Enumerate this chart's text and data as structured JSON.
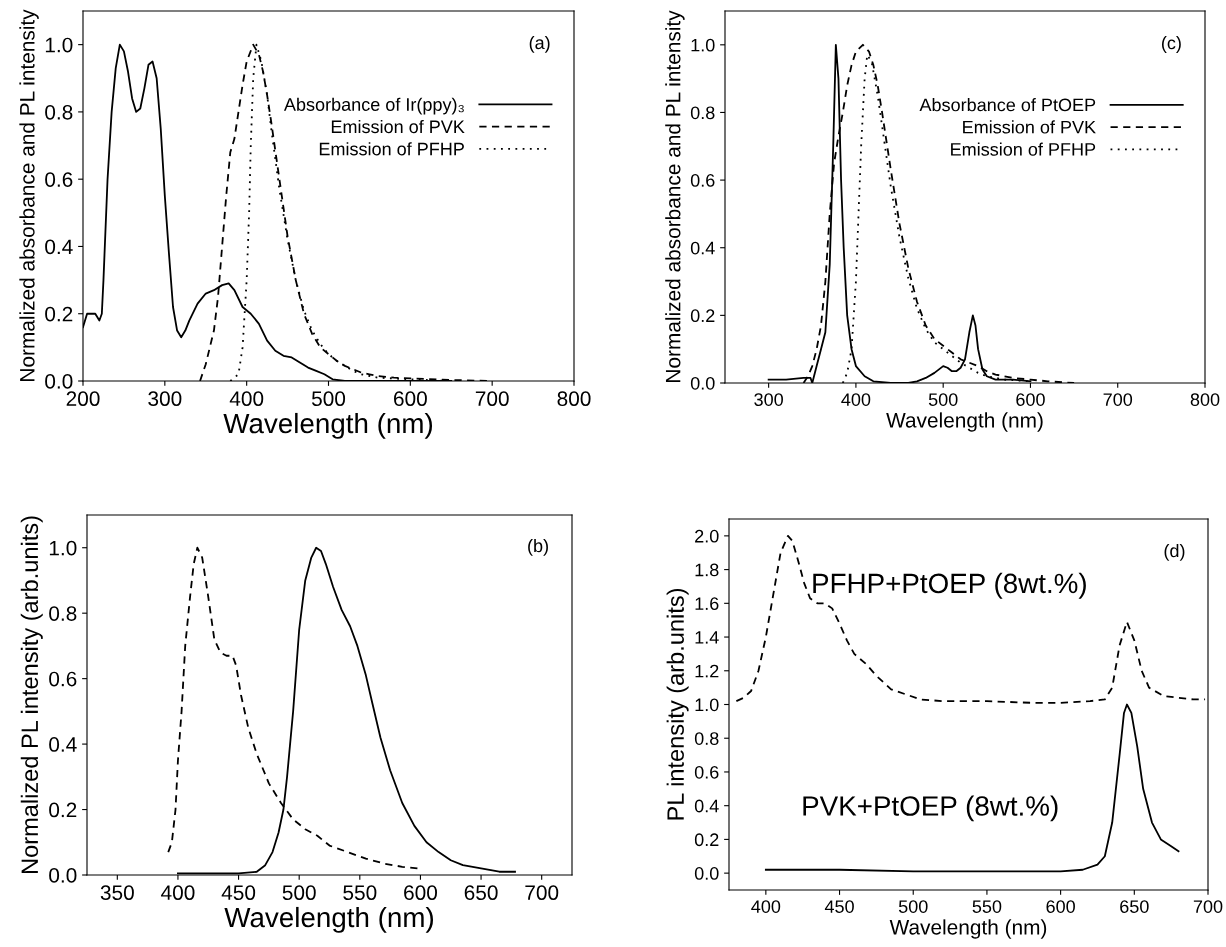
{
  "chart_data": [
    {
      "type": "line",
      "xlabel": "Wavelength (nm)",
      "ylabel": "Normalized absorbance and PL intensity",
      "annotations": [
        "(a)"
      ],
      "xlim": [
        200,
        800
      ],
      "ylim": [
        0,
        1.1
      ],
      "xticks": [
        200,
        300,
        400,
        500,
        600,
        700,
        800
      ],
      "yticks": [
        {
          "value": 0,
          "label": "0.0"
        },
        0.2,
        0.4,
        0.6,
        0.8,
        {
          "value": 1,
          "label": "1.0"
        }
      ],
      "legend": "right",
      "grid": false,
      "series": [
        {
          "name": "Absorbance of Ir(ppy)₃",
          "color": "#000000",
          "line_style": "solid",
          "x": [
            200,
            205,
            215,
            220,
            223,
            225,
            230,
            235,
            240,
            245,
            250,
            255,
            260,
            265,
            270,
            275,
            280,
            285,
            290,
            295,
            300,
            305,
            310,
            315,
            320,
            325,
            330,
            340,
            350,
            360,
            370,
            378,
            385,
            395,
            405,
            415,
            425,
            435,
            445,
            455,
            465,
            475,
            485,
            495,
            505,
            520,
            600,
            650
          ],
          "values": [
            0.16,
            0.2,
            0.2,
            0.18,
            0.2,
            0.3,
            0.6,
            0.8,
            0.93,
            1.0,
            0.98,
            0.92,
            0.84,
            0.8,
            0.81,
            0.87,
            0.94,
            0.95,
            0.9,
            0.75,
            0.55,
            0.38,
            0.22,
            0.15,
            0.13,
            0.15,
            0.18,
            0.23,
            0.26,
            0.27,
            0.285,
            0.29,
            0.27,
            0.22,
            0.2,
            0.17,
            0.12,
            0.09,
            0.075,
            0.07,
            0.055,
            0.04,
            0.03,
            0.02,
            0.005,
            0,
            0,
            0
          ]
        },
        {
          "name": "Emission of PVK",
          "color": "#000000",
          "line_style": "dashed",
          "x": [
            343,
            350,
            360,
            365,
            370,
            375,
            380,
            385,
            390,
            395,
            400,
            408,
            415,
            420,
            425,
            430,
            440,
            450,
            460,
            470,
            480,
            490,
            500,
            510,
            520,
            530,
            540,
            550,
            560,
            580,
            600,
            650,
            700
          ],
          "values": [
            0,
            0.05,
            0.15,
            0.25,
            0.4,
            0.55,
            0.68,
            0.72,
            0.8,
            0.88,
            0.95,
            1.0,
            0.97,
            0.92,
            0.85,
            0.77,
            0.6,
            0.43,
            0.3,
            0.2,
            0.14,
            0.1,
            0.08,
            0.06,
            0.045,
            0.035,
            0.025,
            0.02,
            0.015,
            0.01,
            0.008,
            0.003,
            0
          ]
        },
        {
          "name": "Emission of PFHP",
          "color": "#000000",
          "line_style": "dotted",
          "x": [
            380,
            390,
            395,
            400,
            403,
            405,
            408,
            412,
            418,
            425,
            430,
            440,
            450,
            460,
            470,
            480,
            490,
            500,
            510,
            520,
            530,
            540,
            560,
            600,
            650
          ],
          "values": [
            0,
            0.02,
            0.1,
            0.3,
            0.5,
            0.7,
            0.9,
            1.0,
            0.95,
            0.85,
            0.75,
            0.57,
            0.42,
            0.3,
            0.21,
            0.15,
            0.11,
            0.08,
            0.06,
            0.045,
            0.03,
            0.02,
            0.01,
            0.005,
            0
          ]
        }
      ]
    },
    {
      "type": "line",
      "xlabel": "Wavelength (nm)",
      "ylabel": "Normalized absorbance and PL intensity",
      "annotations": [
        "(c)"
      ],
      "xlim": [
        250,
        800
      ],
      "ylim": [
        0,
        1.1
      ],
      "xticks": [
        300,
        400,
        500,
        600,
        700,
        800
      ],
      "yticks": [
        {
          "value": 0,
          "label": "0.0"
        },
        0.2,
        0.4,
        0.6,
        0.8,
        {
          "value": 1,
          "label": "1.0"
        }
      ],
      "legend": "right",
      "grid": false,
      "series": [
        {
          "name": "Absorbance of PtOEP",
          "color": "#000000",
          "line_style": "solid",
          "x": [
            300,
            320,
            340,
            348,
            350,
            355,
            360,
            365,
            370,
            374,
            377,
            380,
            383,
            386,
            390,
            395,
            400,
            410,
            420,
            440,
            460,
            470,
            480,
            490,
            500,
            505,
            510,
            515,
            520,
            525,
            530,
            534,
            537,
            540,
            545,
            550,
            560,
            580,
            600
          ],
          "values": [
            0.01,
            0.01,
            0.015,
            0.015,
            0,
            0.05,
            0.1,
            0.15,
            0.35,
            0.7,
            1.0,
            0.9,
            0.6,
            0.4,
            0.2,
            0.1,
            0.05,
            0.02,
            0.005,
            0,
            0,
            0.005,
            0.015,
            0.03,
            0.05,
            0.045,
            0.035,
            0.035,
            0.045,
            0.07,
            0.15,
            0.2,
            0.17,
            0.1,
            0.04,
            0.02,
            0.01,
            0.01,
            0.005
          ]
        },
        {
          "name": "Emission of PVK",
          "color": "#000000",
          "line_style": "dashed",
          "x": [
            340,
            345,
            350,
            355,
            360,
            365,
            370,
            375,
            380,
            385,
            390,
            395,
            400,
            408,
            415,
            420,
            425,
            430,
            440,
            450,
            460,
            470,
            480,
            490,
            500,
            510,
            520,
            530,
            540,
            550,
            560,
            570,
            580,
            600,
            620,
            650
          ],
          "values": [
            0,
            0.02,
            0.05,
            0.1,
            0.17,
            0.3,
            0.5,
            0.65,
            0.73,
            0.8,
            0.88,
            0.94,
            0.98,
            1.0,
            0.98,
            0.94,
            0.88,
            0.8,
            0.63,
            0.47,
            0.34,
            0.24,
            0.17,
            0.13,
            0.11,
            0.09,
            0.07,
            0.06,
            0.05,
            0.035,
            0.025,
            0.02,
            0.015,
            0.01,
            0.005,
            0
          ]
        },
        {
          "name": "Emission of PFHP",
          "color": "#000000",
          "line_style": "dotted",
          "x": [
            385,
            390,
            395,
            400,
            403,
            406,
            410,
            413,
            418,
            425,
            430,
            440,
            450,
            460,
            470,
            480,
            490,
            500,
            510,
            520,
            530,
            540,
            550,
            570,
            600
          ],
          "values": [
            0,
            0.03,
            0.1,
            0.3,
            0.5,
            0.7,
            0.9,
            0.97,
            0.95,
            0.85,
            0.76,
            0.58,
            0.43,
            0.31,
            0.22,
            0.16,
            0.12,
            0.1,
            0.08,
            0.06,
            0.045,
            0.03,
            0.02,
            0.01,
            0.005
          ]
        }
      ]
    },
    {
      "type": "line",
      "xlabel": "Wavelength (nm)",
      "ylabel": "Normalized PL intensity (arb.units)",
      "annotations": [
        "(b)"
      ],
      "xlim": [
        325,
        725
      ],
      "ylim": [
        0,
        1.1
      ],
      "xticks": [
        350,
        400,
        450,
        500,
        550,
        600,
        650,
        700
      ],
      "yticks": [
        {
          "value": 0,
          "label": "0.0"
        },
        0.2,
        0.4,
        0.6,
        0.8,
        {
          "value": 1,
          "label": "1.0"
        }
      ],
      "legend": false,
      "grid": false,
      "series": [
        {
          "color": "#000000",
          "line_style": "dashed",
          "x": [
            392,
            395,
            398,
            400,
            403,
            406,
            410,
            413,
            416,
            420,
            425,
            430,
            435,
            440,
            445,
            448,
            452,
            458,
            465,
            475,
            485,
            495,
            505,
            515,
            525,
            540,
            555,
            570,
            585,
            598
          ],
          "values": [
            0.07,
            0.1,
            0.2,
            0.35,
            0.5,
            0.7,
            0.85,
            0.95,
            1.0,
            0.97,
            0.85,
            0.72,
            0.68,
            0.67,
            0.67,
            0.64,
            0.55,
            0.45,
            0.37,
            0.28,
            0.22,
            0.17,
            0.14,
            0.12,
            0.09,
            0.07,
            0.05,
            0.035,
            0.025,
            0.02
          ]
        },
        {
          "color": "#000000",
          "line_style": "solid",
          "x": [
            400,
            450,
            465,
            472,
            478,
            483,
            487,
            490,
            495,
            500,
            505,
            510,
            514,
            518,
            522,
            528,
            535,
            542,
            548,
            555,
            560,
            567,
            575,
            585,
            595,
            605,
            615,
            625,
            635,
            650,
            665,
            678
          ],
          "values": [
            0.005,
            0.005,
            0.01,
            0.03,
            0.07,
            0.13,
            0.2,
            0.3,
            0.5,
            0.75,
            0.9,
            0.97,
            1.0,
            0.99,
            0.95,
            0.88,
            0.81,
            0.76,
            0.7,
            0.61,
            0.53,
            0.42,
            0.32,
            0.22,
            0.15,
            0.1,
            0.07,
            0.045,
            0.03,
            0.02,
            0.01,
            0.01
          ]
        }
      ]
    },
    {
      "type": "line",
      "xlabel": "Wavelength (nm)",
      "ylabel": "PL intensity (arb.units)",
      "annotations": [
        "(d)"
      ],
      "xlim": [
        375,
        700
      ],
      "ylim": [
        -0.1,
        2.1
      ],
      "xticks": [
        400,
        450,
        500,
        550,
        600,
        650,
        700
      ],
      "yticks": [
        {
          "value": 0,
          "label": "0.0"
        },
        0.2,
        0.4,
        0.6,
        0.8,
        {
          "value": 1,
          "label": "1.0"
        },
        1.2,
        1.4,
        1.6,
        1.8,
        {
          "value": 2,
          "label": "2.0"
        }
      ],
      "legend": false,
      "grid": false,
      "series": [
        {
          "name": "PFHP+PtOEP (8wt.%)",
          "color": "#000000",
          "line_style": "dashed",
          "x": [
            380,
            385,
            390,
            395,
            400,
            405,
            410,
            415,
            418,
            422,
            426,
            430,
            435,
            440,
            445,
            450,
            455,
            460,
            468,
            475,
            485,
            495,
            505,
            520,
            550,
            580,
            600,
            620,
            630,
            635,
            640,
            645,
            650,
            655,
            660,
            670,
            680,
            690,
            698
          ],
          "values": [
            1.02,
            1.04,
            1.08,
            1.2,
            1.4,
            1.65,
            1.9,
            2.0,
            1.97,
            1.85,
            1.72,
            1.63,
            1.6,
            1.6,
            1.57,
            1.48,
            1.38,
            1.3,
            1.24,
            1.17,
            1.09,
            1.06,
            1.03,
            1.02,
            1.02,
            1.01,
            1.01,
            1.02,
            1.03,
            1.1,
            1.35,
            1.49,
            1.38,
            1.2,
            1.1,
            1.05,
            1.04,
            1.03,
            1.03
          ]
        },
        {
          "name": "PVK+PtOEP (8wt.%)",
          "color": "#000000",
          "line_style": "solid",
          "x": [
            400,
            450,
            500,
            550,
            600,
            615,
            625,
            630,
            635,
            640,
            643,
            645,
            648,
            652,
            656,
            662,
            668,
            675,
            680
          ],
          "values": [
            0.02,
            0.02,
            0.01,
            0.01,
            0.01,
            0.02,
            0.05,
            0.1,
            0.3,
            0.7,
            0.95,
            1.0,
            0.95,
            0.75,
            0.5,
            0.3,
            0.2,
            0.16,
            0.13
          ]
        }
      ]
    }
  ]
}
